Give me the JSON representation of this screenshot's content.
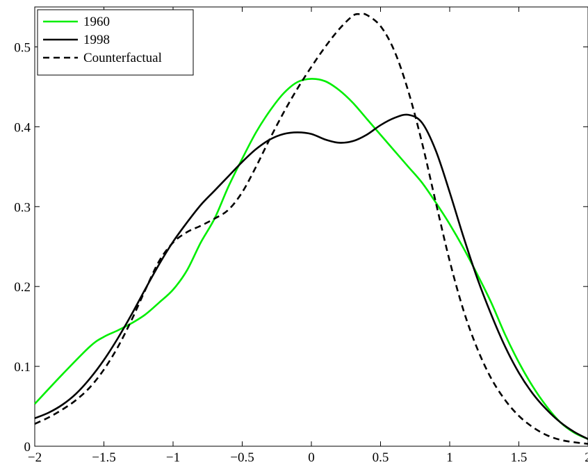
{
  "chart_data": {
    "type": "line",
    "title": "",
    "xlabel": "",
    "ylabel": "",
    "xlim": [
      -2,
      2
    ],
    "ylim": [
      0,
      0.55
    ],
    "grid": false,
    "legend_position": "top-left",
    "x_ticks": [
      -2,
      -1.5,
      -1,
      -0.5,
      0,
      0.5,
      1,
      1.5,
      2
    ],
    "x_tick_labels": [
      "−2",
      "−1.5",
      "−1",
      "−0.5",
      "0",
      "0.5",
      "1",
      "1.5",
      "2"
    ],
    "y_ticks": [
      0,
      0.1,
      0.2,
      0.3,
      0.4,
      0.5
    ],
    "y_tick_labels": [
      "0",
      "0.1",
      "0.2",
      "0.3",
      "0.4",
      "0.5"
    ],
    "series": [
      {
        "name": "1960",
        "color": "#00ee00",
        "dash": "solid",
        "points": [
          [
            -2,
            0.053
          ],
          [
            -1.8,
            0.09
          ],
          [
            -1.6,
            0.125
          ],
          [
            -1.5,
            0.137
          ],
          [
            -1.4,
            0.145
          ],
          [
            -1.3,
            0.154
          ],
          [
            -1.2,
            0.165
          ],
          [
            -1.1,
            0.18
          ],
          [
            -1,
            0.196
          ],
          [
            -0.9,
            0.22
          ],
          [
            -0.8,
            0.255
          ],
          [
            -0.7,
            0.285
          ],
          [
            -0.6,
            0.325
          ],
          [
            -0.5,
            0.36
          ],
          [
            -0.4,
            0.393
          ],
          [
            -0.3,
            0.42
          ],
          [
            -0.2,
            0.442
          ],
          [
            -0.1,
            0.456
          ],
          [
            0,
            0.46
          ],
          [
            0.1,
            0.457
          ],
          [
            0.2,
            0.446
          ],
          [
            0.3,
            0.43
          ],
          [
            0.4,
            0.41
          ],
          [
            0.5,
            0.39
          ],
          [
            0.6,
            0.37
          ],
          [
            0.7,
            0.35
          ],
          [
            0.8,
            0.33
          ],
          [
            0.9,
            0.305
          ],
          [
            1,
            0.278
          ],
          [
            1.1,
            0.248
          ],
          [
            1.2,
            0.215
          ],
          [
            1.3,
            0.18
          ],
          [
            1.4,
            0.14
          ],
          [
            1.5,
            0.105
          ],
          [
            1.6,
            0.075
          ],
          [
            1.7,
            0.05
          ],
          [
            1.8,
            0.03
          ],
          [
            1.9,
            0.017
          ],
          [
            2,
            0.009
          ]
        ]
      },
      {
        "name": "1998",
        "color": "#000000",
        "dash": "solid",
        "points": [
          [
            -2,
            0.035
          ],
          [
            -1.9,
            0.042
          ],
          [
            -1.8,
            0.052
          ],
          [
            -1.7,
            0.066
          ],
          [
            -1.6,
            0.085
          ],
          [
            -1.5,
            0.108
          ],
          [
            -1.4,
            0.135
          ],
          [
            -1.3,
            0.165
          ],
          [
            -1.2,
            0.197
          ],
          [
            -1.1,
            0.228
          ],
          [
            -1,
            0.256
          ],
          [
            -0.9,
            0.28
          ],
          [
            -0.8,
            0.302
          ],
          [
            -0.7,
            0.32
          ],
          [
            -0.6,
            0.338
          ],
          [
            -0.5,
            0.356
          ],
          [
            -0.4,
            0.372
          ],
          [
            -0.3,
            0.384
          ],
          [
            -0.2,
            0.391
          ],
          [
            -0.1,
            0.393
          ],
          [
            0,
            0.391
          ],
          [
            0.1,
            0.384
          ],
          [
            0.2,
            0.38
          ],
          [
            0.3,
            0.382
          ],
          [
            0.4,
            0.39
          ],
          [
            0.5,
            0.402
          ],
          [
            0.6,
            0.411
          ],
          [
            0.7,
            0.415
          ],
          [
            0.8,
            0.405
          ],
          [
            0.9,
            0.37
          ],
          [
            1,
            0.318
          ],
          [
            1.1,
            0.262
          ],
          [
            1.2,
            0.21
          ],
          [
            1.3,
            0.165
          ],
          [
            1.4,
            0.125
          ],
          [
            1.5,
            0.092
          ],
          [
            1.6,
            0.066
          ],
          [
            1.7,
            0.046
          ],
          [
            1.8,
            0.03
          ],
          [
            1.9,
            0.018
          ],
          [
            2,
            0.009
          ]
        ]
      },
      {
        "name": "Counterfactual",
        "color": "#000000",
        "dash": "dashed",
        "points": [
          [
            -2,
            0.028
          ],
          [
            -1.9,
            0.036
          ],
          [
            -1.8,
            0.046
          ],
          [
            -1.7,
            0.058
          ],
          [
            -1.6,
            0.074
          ],
          [
            -1.5,
            0.096
          ],
          [
            -1.4,
            0.124
          ],
          [
            -1.3,
            0.158
          ],
          [
            -1.2,
            0.196
          ],
          [
            -1.1,
            0.232
          ],
          [
            -1,
            0.255
          ],
          [
            -0.9,
            0.268
          ],
          [
            -0.8,
            0.276
          ],
          [
            -0.7,
            0.285
          ],
          [
            -0.6,
            0.296
          ],
          [
            -0.5,
            0.318
          ],
          [
            -0.4,
            0.35
          ],
          [
            -0.3,
            0.385
          ],
          [
            -0.2,
            0.418
          ],
          [
            -0.1,
            0.448
          ],
          [
            0,
            0.475
          ],
          [
            0.1,
            0.5
          ],
          [
            0.2,
            0.522
          ],
          [
            0.3,
            0.539
          ],
          [
            0.35,
            0.541
          ],
          [
            0.4,
            0.54
          ],
          [
            0.5,
            0.526
          ],
          [
            0.6,
            0.495
          ],
          [
            0.7,
            0.445
          ],
          [
            0.8,
            0.38
          ],
          [
            0.9,
            0.305
          ],
          [
            1,
            0.232
          ],
          [
            1.1,
            0.17
          ],
          [
            1.2,
            0.122
          ],
          [
            1.3,
            0.085
          ],
          [
            1.4,
            0.058
          ],
          [
            1.5,
            0.038
          ],
          [
            1.6,
            0.024
          ],
          [
            1.7,
            0.014
          ],
          [
            1.8,
            0.008
          ],
          [
            1.9,
            0.005
          ],
          [
            2,
            0.003
          ]
        ]
      }
    ]
  }
}
